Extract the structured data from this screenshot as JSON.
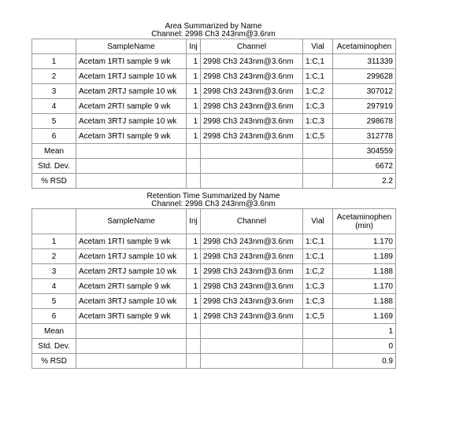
{
  "area_table": {
    "title_line1": "Area Summarized by Name",
    "title_line2": "Channel: 2998 Ch3 243nm@3.6nm",
    "headers": [
      "",
      "SampleName",
      "Inj",
      "Channel",
      "Vial",
      "Acetaminophen"
    ],
    "rows": [
      [
        "1",
        "Acetam 1RTI sample 9 wk",
        "1",
        "2998 Ch3 243nm@3.6nm",
        "1:C,1",
        "311339"
      ],
      [
        "2",
        "Acetam 1RTJ sample 10 wk",
        "1",
        "2998 Ch3 243nm@3.6nm",
        "1:C,1",
        "299628"
      ],
      [
        "3",
        "Acetam 2RTJ sample 10 wk",
        "1",
        "2998 Ch3 243nm@3.6nm",
        "1:C,2",
        "307012"
      ],
      [
        "4",
        "Acetam 2RTI sample 9 wk",
        "1",
        "2998 Ch3 243nm@3.6nm",
        "1:C,3",
        "297919"
      ],
      [
        "5",
        "Acetam 3RTJ sample 10 wk",
        "1",
        "2998 Ch3 243nm@3.6nm",
        "1:C,3",
        "298678"
      ],
      [
        "6",
        "Acetam 3RTI sample 9 wk",
        "1",
        "2998 Ch3 243nm@3.6nm",
        "1:C,5",
        "312778"
      ]
    ],
    "summary": [
      [
        "Mean",
        "304559"
      ],
      [
        "Std. Dev.",
        "6672"
      ],
      [
        "% RSD",
        "2.2"
      ]
    ]
  },
  "rt_table": {
    "title_line1": "Retention Time Summarized by Name",
    "title_line2": "Channel: 2998 Ch3 243nm@3.6nm",
    "headers": [
      "",
      "SampleName",
      "Inj",
      "Channel",
      "Vial",
      "Acetaminophen",
      "(min)"
    ],
    "rows": [
      [
        "1",
        "Acetam 1RTI sample 9 wk",
        "1",
        "2998 Ch3 243nm@3.6nm",
        "1:C,1",
        "1.170"
      ],
      [
        "2",
        "Acetam 1RTJ sample 10 wk",
        "1",
        "2998 Ch3 243nm@3.6nm",
        "1:C,1",
        "1.189"
      ],
      [
        "3",
        "Acetam 2RTJ sample 10 wk",
        "1",
        "2998 Ch3 243nm@3.6nm",
        "1:C,2",
        "1.188"
      ],
      [
        "4",
        "Acetam 2RTI sample 9 wk",
        "1",
        "2998 Ch3 243nm@3.6nm",
        "1:C,3",
        "1.170"
      ],
      [
        "5",
        "Acetam 3RTJ sample 10 wk",
        "1",
        "2998 Ch3 243nm@3.6nm",
        "1:C,3",
        "1.188"
      ],
      [
        "6",
        "Acetam 3RTI sample 9 wk",
        "1",
        "2998 Ch3 243nm@3.6nm",
        "1:C,5",
        "1.169"
      ]
    ],
    "summary": [
      [
        "Mean",
        "1"
      ],
      [
        "Std. Dev.",
        "0"
      ],
      [
        "% RSD",
        "0.9"
      ]
    ]
  }
}
